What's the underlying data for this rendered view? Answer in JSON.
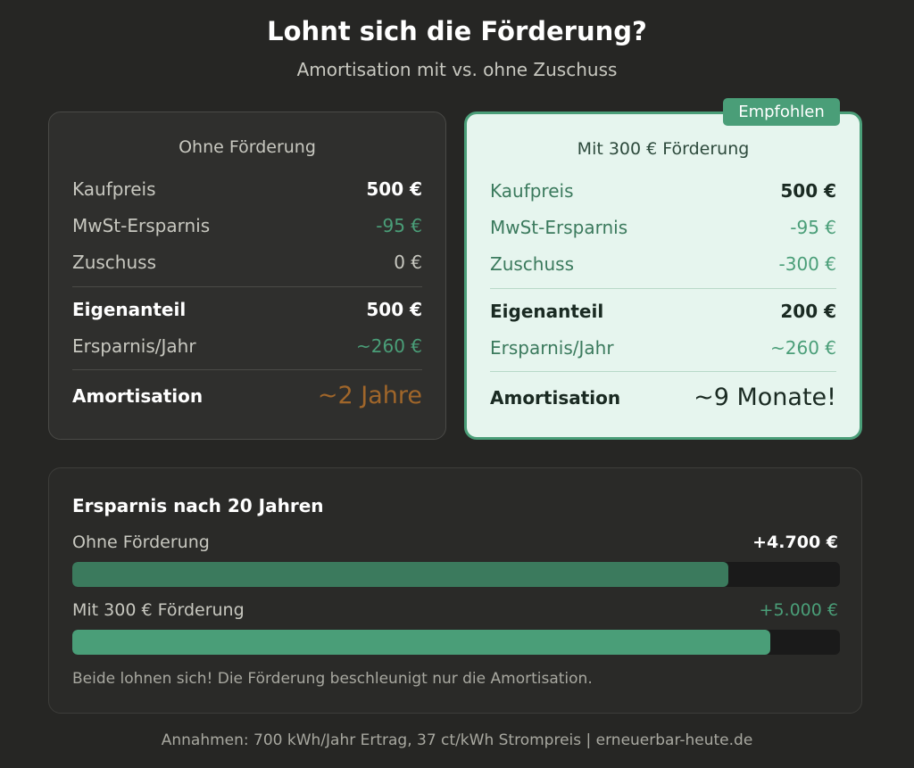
{
  "header": {
    "title": "Lohnt sich die Förderung?",
    "subtitle": "Amortisation mit vs. ohne Zuschuss"
  },
  "cards": [
    {
      "title": "Ohne Förderung",
      "rows": [
        {
          "label": "Kaufpreis",
          "value": "500 €"
        },
        {
          "label": "MwSt-Ersparnis",
          "value": "-95 €"
        },
        {
          "label": "Zuschuss",
          "value": "0 €"
        },
        {
          "label": "Eigenanteil",
          "value": "500 €"
        },
        {
          "label": "Ersparnis/Jahr",
          "value": "~260 €"
        },
        {
          "label": "Amortisation",
          "value": "~2 Jahre"
        }
      ]
    },
    {
      "title": "Mit 300 € Förderung",
      "badge": "Empfohlen",
      "rows": [
        {
          "label": "Kaufpreis",
          "value": "500 €"
        },
        {
          "label": "MwSt-Ersparnis",
          "value": "-95 €"
        },
        {
          "label": "Zuschuss",
          "value": "-300 €"
        },
        {
          "label": "Eigenanteil",
          "value": "200 €"
        },
        {
          "label": "Ersparnis/Jahr",
          "value": "~260 €"
        },
        {
          "label": "Amortisation",
          "value": "~9 Monate!"
        }
      ]
    }
  ],
  "savings": {
    "title": "Ersparnis nach 20 Jahren",
    "xlim": [
      0,
      5500
    ],
    "bars": [
      {
        "name": "Ohne Förderung",
        "value": 4700,
        "value_label": "+4.700 €",
        "color": "#3b7a5d"
      },
      {
        "name": "Mit 300 € Förderung",
        "value": 5000,
        "value_label": "+5.000 €",
        "color": "#4a9e78"
      }
    ],
    "note": "Beide lohnen sich! Die Förderung beschleunigt nur die Amortisation."
  },
  "footer": "Annahmen: 700 kWh/Jahr Ertrag, 37 ct/kWh Strompreis | erneuerbar-heute.de"
}
